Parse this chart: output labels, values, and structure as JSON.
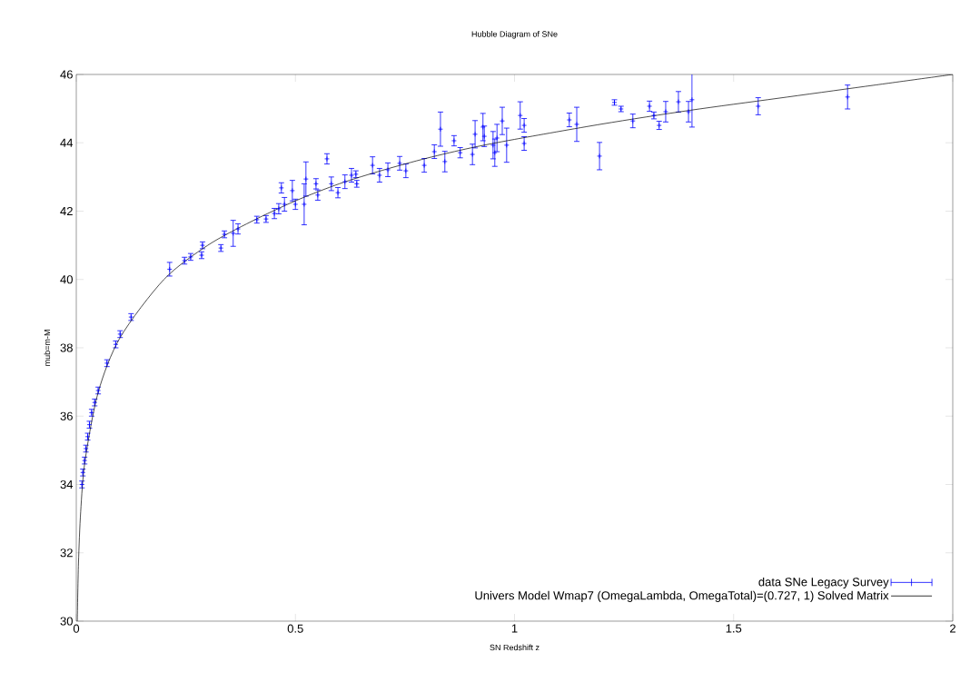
{
  "chart_data": {
    "type": "scatter",
    "title": "Hubble Diagram of SNe",
    "xlabel": "SN Redshift z",
    "ylabel": "mub=m-M",
    "xlim": [
      0,
      2
    ],
    "ylim": [
      30,
      46
    ],
    "xticks": [
      0,
      0.5,
      1,
      1.5,
      2
    ],
    "yticks": [
      30,
      32,
      34,
      36,
      38,
      40,
      42,
      44,
      46
    ],
    "legend": "bottom right",
    "series": [
      {
        "name": "data SNe Legacy Survey",
        "type": "scatter",
        "color": "#0000ff",
        "x": [
          0.013,
          0.015,
          0.019,
          0.022,
          0.026,
          0.03,
          0.035,
          0.042,
          0.05,
          0.07,
          0.09,
          0.1,
          0.125,
          0.213,
          0.247,
          0.261,
          0.286,
          0.288,
          0.33,
          0.338,
          0.358,
          0.369,
          0.412,
          0.433,
          0.452,
          0.462,
          0.468,
          0.475,
          0.493,
          0.5,
          0.52,
          0.524,
          0.547,
          0.551,
          0.572,
          0.582,
          0.597,
          0.613,
          0.628,
          0.638,
          0.64,
          0.676,
          0.692,
          0.711,
          0.738,
          0.752,
          0.794,
          0.817,
          0.831,
          0.841,
          0.862,
          0.876,
          0.904,
          0.91,
          0.928,
          0.931,
          0.951,
          0.955,
          0.96,
          0.972,
          0.982,
          1.013,
          1.022,
          1.022,
          1.125,
          1.142,
          1.194,
          1.228,
          1.243,
          1.27,
          1.308,
          1.318,
          1.33,
          1.345,
          1.374,
          1.397,
          1.405,
          1.556,
          1.76
        ],
        "values": [
          34.0,
          34.35,
          34.7,
          35.05,
          35.4,
          35.75,
          36.1,
          36.4,
          36.75,
          37.55,
          38.1,
          38.4,
          38.9,
          40.3,
          40.55,
          40.66,
          40.71,
          41.0,
          40.92,
          41.32,
          41.35,
          41.48,
          41.75,
          41.77,
          41.93,
          42.07,
          42.68,
          42.2,
          42.6,
          42.2,
          42.2,
          42.94,
          42.8,
          42.47,
          43.53,
          42.8,
          42.54,
          42.86,
          43.05,
          43.08,
          42.8,
          43.34,
          43.05,
          43.21,
          43.4,
          43.18,
          43.34,
          43.74,
          44.4,
          43.45,
          44.06,
          43.71,
          43.66,
          44.25,
          44.46,
          44.19,
          43.93,
          43.71,
          44.14,
          44.64,
          43.93,
          44.8,
          44.51,
          43.98,
          44.67,
          44.54,
          43.61,
          45.18,
          44.99,
          44.64,
          45.07,
          44.8,
          44.51,
          44.91,
          45.2,
          44.91,
          45.26,
          45.07,
          45.34
        ],
        "errors": [
          0.1,
          0.1,
          0.1,
          0.1,
          0.1,
          0.1,
          0.1,
          0.1,
          0.1,
          0.1,
          0.1,
          0.1,
          0.1,
          0.2,
          0.1,
          0.1,
          0.1,
          0.1,
          0.1,
          0.1,
          0.38,
          0.15,
          0.1,
          0.1,
          0.15,
          0.15,
          0.15,
          0.2,
          0.3,
          0.15,
          0.6,
          0.5,
          0.15,
          0.15,
          0.15,
          0.2,
          0.15,
          0.2,
          0.2,
          0.1,
          0.1,
          0.25,
          0.2,
          0.2,
          0.2,
          0.2,
          0.2,
          0.2,
          0.5,
          0.3,
          0.15,
          0.15,
          0.3,
          0.4,
          0.4,
          0.3,
          0.4,
          0.4,
          0.4,
          0.4,
          0.5,
          0.4,
          0.2,
          0.2,
          0.2,
          0.5,
          0.4,
          0.08,
          0.08,
          0.2,
          0.15,
          0.1,
          0.12,
          0.3,
          0.3,
          0.3,
          0.8,
          0.25,
          0.35
        ]
      },
      {
        "name": "Univers Model Wmap7 (OmegaLambda, OmegaTotal)=(0.727, 1) Solved Matrix",
        "type": "line",
        "color": "#000000",
        "x": [
          0.0022,
          0.005,
          0.01,
          0.02,
          0.05,
          0.1,
          0.2,
          0.3,
          0.4,
          0.5,
          0.6,
          0.7,
          0.8,
          0.9,
          1.0,
          1.2,
          1.4,
          1.6,
          1.8,
          2.0
        ],
        "values": [
          30.0,
          31.7,
          33.2,
          34.7,
          36.7,
          38.3,
          40.0,
          41.0,
          41.7,
          42.3,
          42.8,
          43.2,
          43.55,
          43.85,
          44.1,
          44.55,
          44.95,
          45.3,
          45.65,
          46.0
        ]
      }
    ]
  }
}
